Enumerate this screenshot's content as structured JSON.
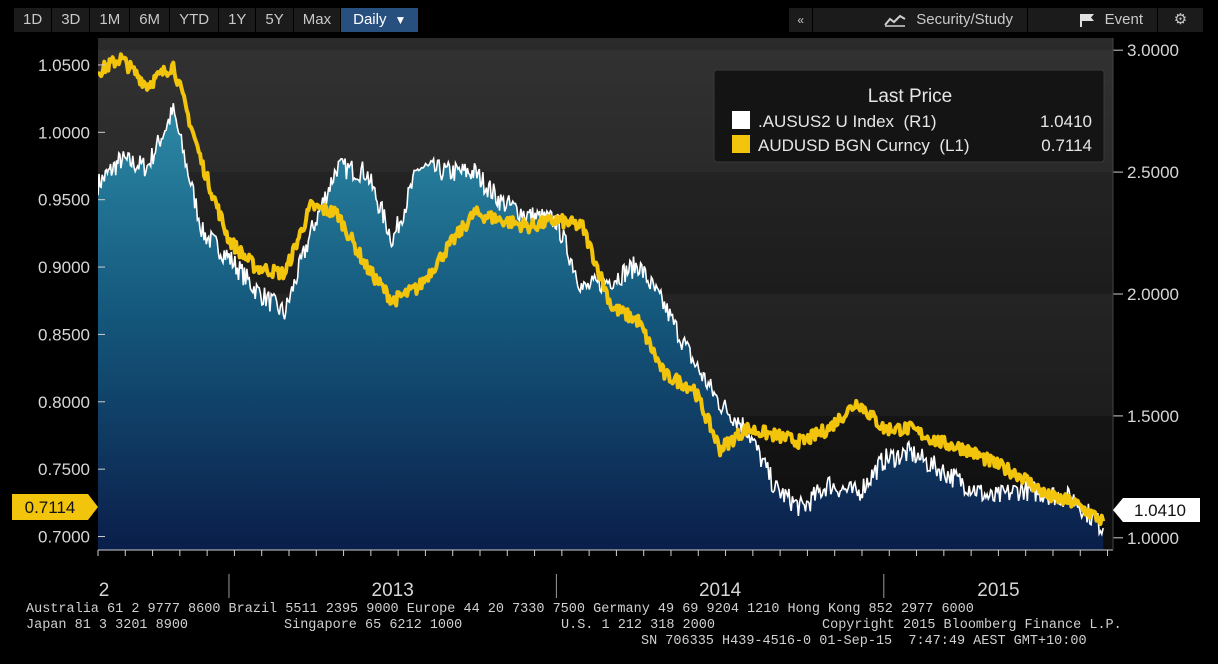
{
  "toolbar": {
    "periods": [
      "1D",
      "3D",
      "1M",
      "6M",
      "YTD",
      "1Y",
      "5Y",
      "Max"
    ],
    "interval": "Daily",
    "collapse_glyph": "«",
    "security_study": "Security/Study",
    "event": "Event",
    "icons": {
      "study": "chart-study-icon",
      "event": "flag-icon",
      "settings": "gear-icon"
    }
  },
  "legend": {
    "title": "Last Price",
    "items": [
      {
        "label": ".AUSUS2 U Index  (R1)",
        "value": "1.0410",
        "color": "#ffffff"
      },
      {
        "label": "AUDUSD BGN Curncy  (L1)",
        "value": "0.7114",
        "color": "#f2c40c"
      }
    ]
  },
  "chart_data": {
    "type": "line",
    "x_tick_labels": [
      "2",
      "2013",
      "2014",
      "2015"
    ],
    "left_axis": {
      "ticks": [
        "1.0500",
        "1.0000",
        "0.9500",
        "0.9000",
        "0.8500",
        "0.8000",
        "0.7500",
        "0.7000"
      ],
      "ylim": [
        0.69,
        1.07
      ]
    },
    "right_axis": {
      "ticks": [
        "3.0000",
        "2.5000",
        "2.0000",
        "1.5000",
        "1.0000"
      ],
      "ylim": [
        0.95,
        3.05
      ]
    },
    "last_left": "0.7114",
    "last_right": "1.0410",
    "series": [
      {
        "name": ".AUSUS2 U Index (R1)",
        "axis": "right",
        "color": "#ffffff",
        "x": [
          2012.6,
          2012.67,
          2012.75,
          2012.83,
          2012.92,
          2013.0,
          2013.08,
          2013.17,
          2013.25,
          2013.33,
          2013.42,
          2013.5,
          2013.58,
          2013.67,
          2013.75,
          2013.83,
          2013.92,
          2014.0,
          2014.08,
          2014.17,
          2014.25,
          2014.33,
          2014.42,
          2014.5,
          2014.58,
          2014.67,
          2014.75,
          2014.83,
          2014.92,
          2015.0,
          2015.08,
          2015.17,
          2015.25,
          2015.33,
          2015.42,
          2015.5,
          2015.58,
          2015.67
        ],
        "values": [
          2.45,
          2.55,
          2.52,
          2.75,
          2.25,
          2.15,
          2.02,
          1.92,
          2.25,
          2.52,
          2.5,
          2.22,
          2.52,
          2.5,
          2.5,
          2.38,
          2.32,
          2.3,
          2.02,
          2.06,
          2.12,
          1.95,
          1.72,
          1.55,
          1.45,
          1.2,
          1.12,
          1.22,
          1.18,
          1.32,
          1.35,
          1.28,
          1.22,
          1.16,
          1.2,
          1.18,
          1.16,
          1.04
        ]
      },
      {
        "name": "AUDUSD BGN Curncy (L1)",
        "axis": "left",
        "color": "#f2c40c",
        "x": [
          2012.6,
          2012.67,
          2012.75,
          2012.83,
          2012.92,
          2013.0,
          2013.08,
          2013.17,
          2013.25,
          2013.33,
          2013.42,
          2013.5,
          2013.58,
          2013.67,
          2013.75,
          2013.83,
          2013.92,
          2014.0,
          2014.08,
          2014.17,
          2014.25,
          2014.33,
          2014.42,
          2014.5,
          2014.58,
          2014.67,
          2014.75,
          2014.83,
          2014.92,
          2015.0,
          2015.08,
          2015.17,
          2015.25,
          2015.33,
          2015.42,
          2015.5,
          2015.58,
          2015.67
        ],
        "values": [
          1.045,
          1.055,
          1.035,
          1.05,
          0.975,
          0.92,
          0.9,
          0.895,
          0.945,
          0.94,
          0.9,
          0.875,
          0.885,
          0.915,
          0.94,
          0.935,
          0.93,
          0.935,
          0.93,
          0.87,
          0.86,
          0.82,
          0.81,
          0.765,
          0.78,
          0.775,
          0.77,
          0.78,
          0.8,
          0.78,
          0.78,
          0.77,
          0.765,
          0.755,
          0.745,
          0.73,
          0.725,
          0.7114
        ]
      }
    ]
  },
  "footer": {
    "line1": "Australia 61 2 9777 8600 Brazil 5511 2395 9000 Europe 44 20 7330 7500 Germany 49 69 9204 1210 Hong Kong 852 2977 6000",
    "line2a": "Japan 81 3 3201 8900",
    "line2b": "Singapore 65 6212 1000",
    "line2c": "U.S. 1 212 318 2000",
    "line2d": "Copyright 2015 Bloomberg Finance L.P.",
    "line3": "SN 706335 H439-4516-0 01-Sep-15  7:47:49 AEST GMT+10:00"
  }
}
